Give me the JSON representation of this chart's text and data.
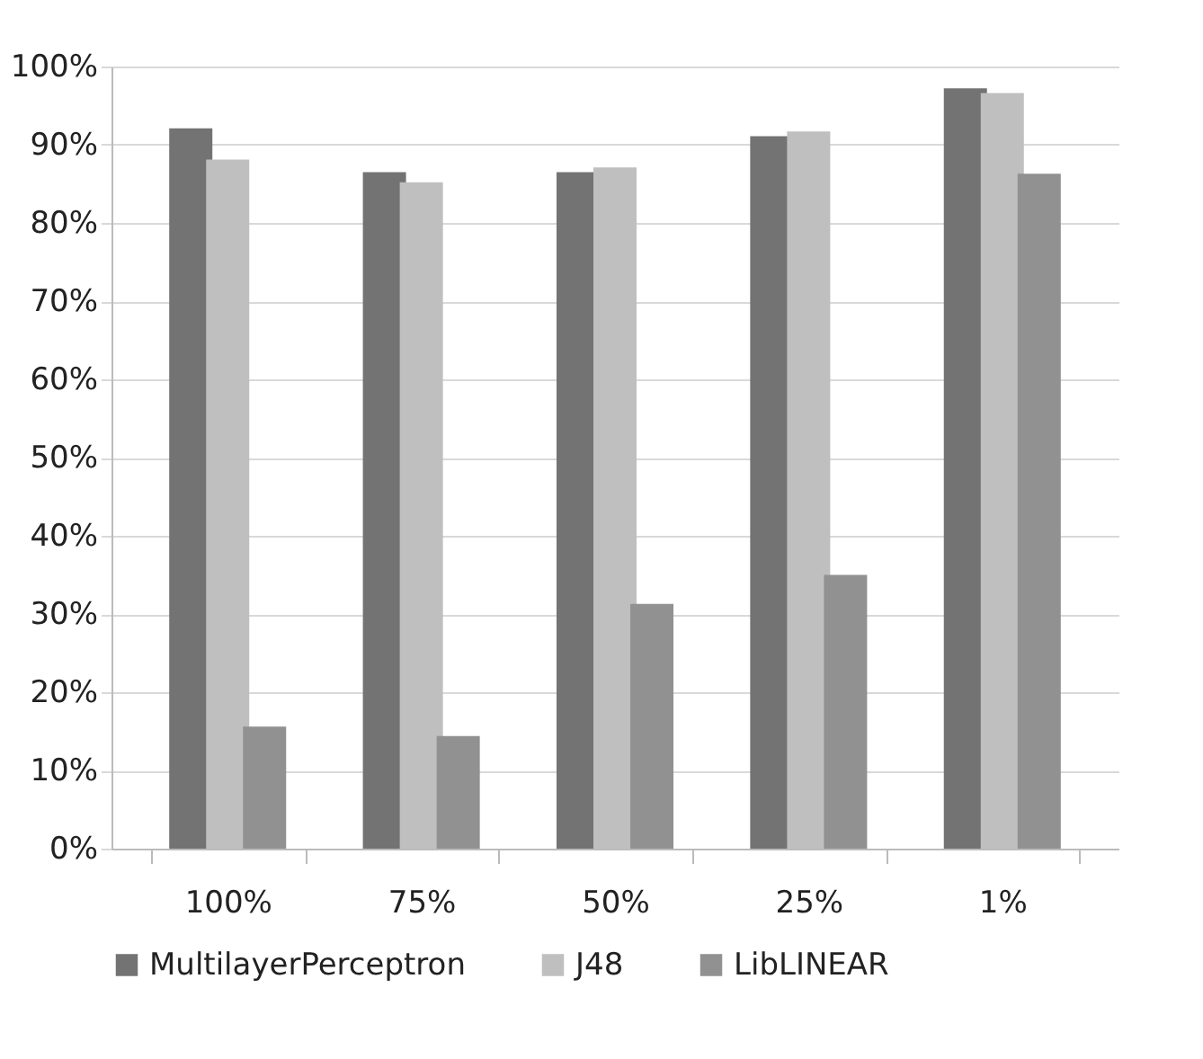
{
  "chart_data": {
    "type": "bar",
    "categories": [
      "100%",
      "75%",
      "50%",
      "25%",
      "1%"
    ],
    "series": [
      {
        "name": "MultilayerPerceptron",
        "color": "#737373",
        "values": [
          92.1,
          86.5,
          86.5,
          91.1,
          97.2
        ]
      },
      {
        "name": "J48",
        "color": "#bfbfbf",
        "values": [
          88.1,
          85.2,
          87.1,
          91.7,
          96.6
        ]
      },
      {
        "name": "LibLINEAR",
        "color": "#919191",
        "values": [
          15.6,
          14.4,
          31.3,
          35.0,
          86.3
        ]
      }
    ],
    "ylim": [
      0,
      100
    ],
    "yticks": [
      {
        "value": 0,
        "label": "0%"
      },
      {
        "value": 10,
        "label": "10%"
      },
      {
        "value": 20,
        "label": "20%"
      },
      {
        "value": 30,
        "label": "30%"
      },
      {
        "value": 40,
        "label": "40%"
      },
      {
        "value": 50,
        "label": "50%"
      },
      {
        "value": 60,
        "label": "60%"
      },
      {
        "value": 70,
        "label": "70%"
      },
      {
        "value": 80,
        "label": "80%"
      },
      {
        "value": 90,
        "label": "90%"
      },
      {
        "value": 100,
        "label": "100%"
      }
    ],
    "grid": "y",
    "legend": "bottom"
  }
}
